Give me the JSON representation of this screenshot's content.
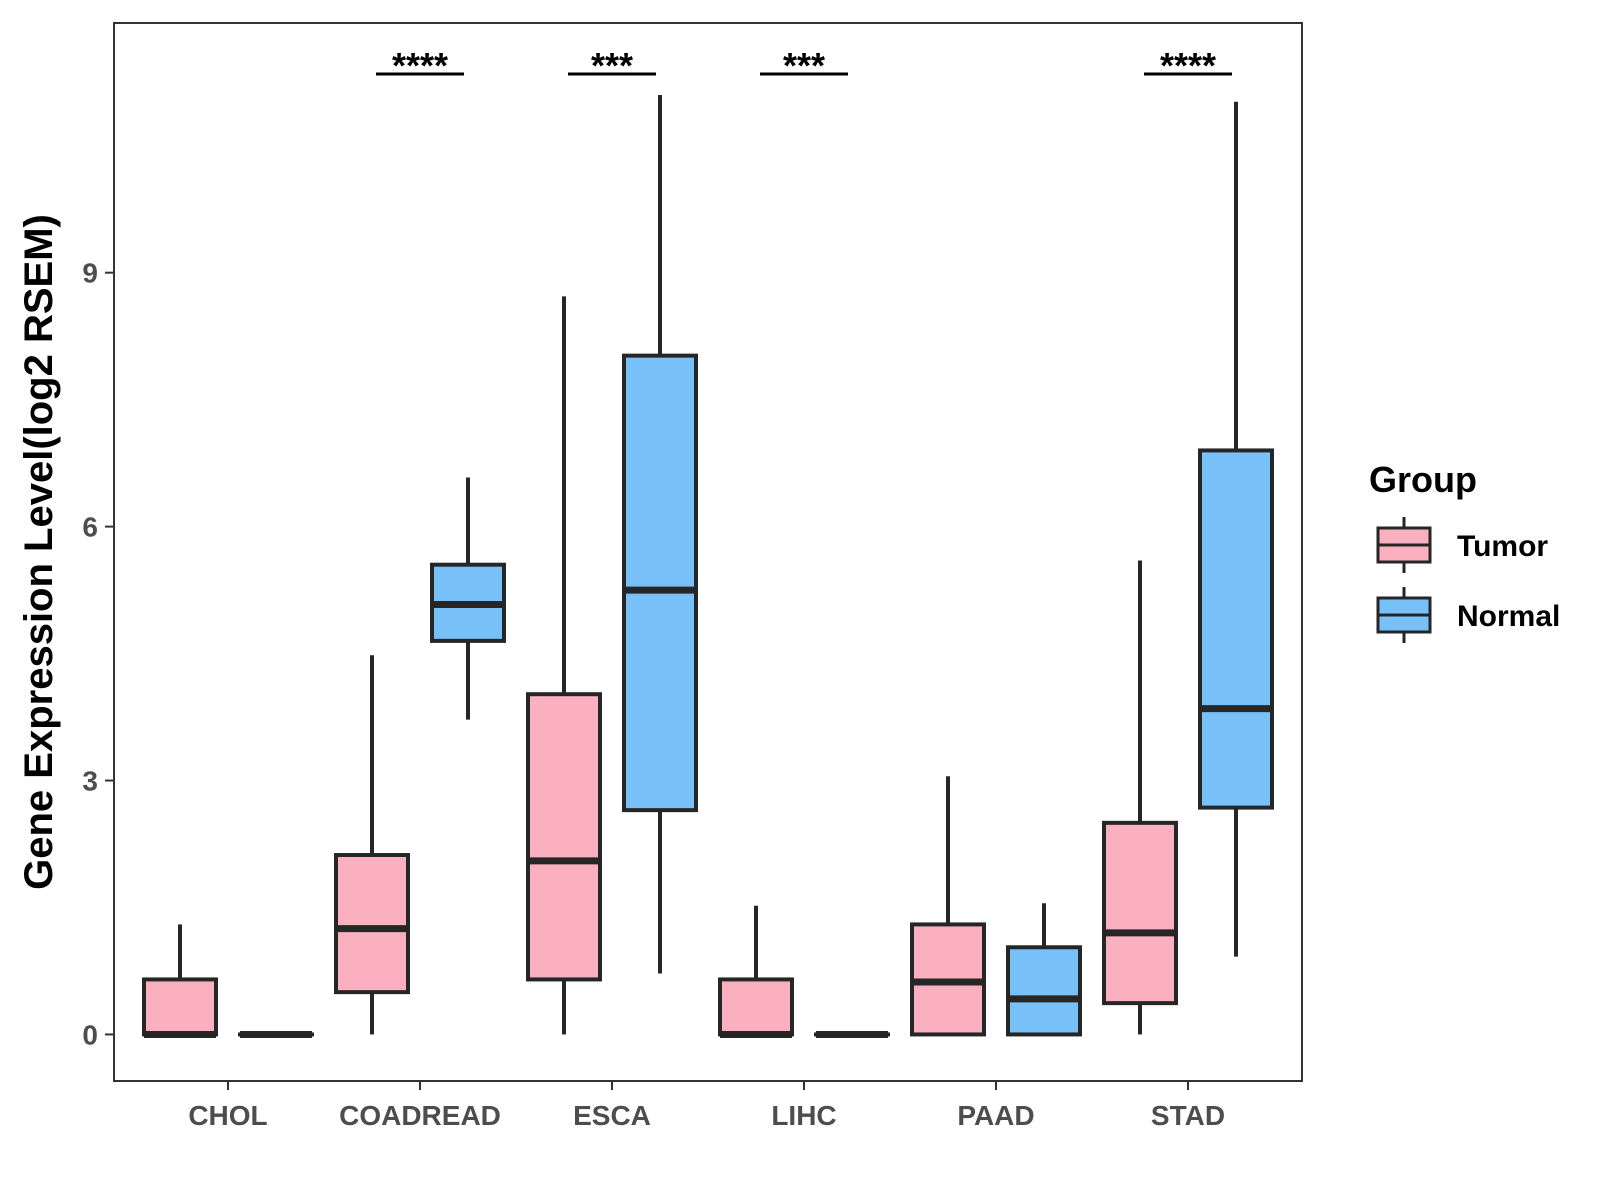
{
  "chart_data": {
    "type": "boxplot",
    "title": "",
    "xlabel": "",
    "ylabel": "Gene Expression Level(log2 RSEM)",
    "ylim": [
      -0.55,
      11.95
    ],
    "yticks": [
      0,
      3,
      6,
      9
    ],
    "ytick_labels": [
      "0",
      "3",
      "6",
      "9"
    ],
    "grid": false,
    "categories": [
      "CHOL",
      "COADREAD",
      "ESCA",
      "LIHC",
      "PAAD",
      "STAD"
    ],
    "significance": [
      "",
      "****",
      "***",
      "***",
      "",
      "****"
    ],
    "legend": {
      "title": "Group",
      "position": "right",
      "items": [
        {
          "name": "Tumor",
          "color": "#FBB0C0"
        },
        {
          "name": "Normal",
          "color": "#78C1F8"
        }
      ]
    },
    "series": [
      {
        "name": "Tumor",
        "color": "#FBB0C0",
        "boxes": [
          {
            "min": 0,
            "q1": 0,
            "median": 0,
            "q3": 0.65,
            "max": 1.3
          },
          {
            "min": 0,
            "q1": 0.5,
            "median": 1.25,
            "q3": 2.12,
            "max": 4.48
          },
          {
            "min": 0,
            "q1": 0.65,
            "median": 2.05,
            "q3": 4.02,
            "max": 8.72
          },
          {
            "min": 0,
            "q1": 0,
            "median": 0,
            "q3": 0.65,
            "max": 1.52
          },
          {
            "min": 0,
            "q1": 0,
            "median": 0.62,
            "q3": 1.3,
            "max": 3.05
          },
          {
            "min": 0,
            "q1": 0.37,
            "median": 1.2,
            "q3": 2.5,
            "max": 5.6
          }
        ]
      },
      {
        "name": "Normal",
        "color": "#78C1F8",
        "boxes": [
          {
            "min": 0,
            "q1": 0,
            "median": 0,
            "q3": 0,
            "max": 0
          },
          {
            "min": 3.72,
            "q1": 4.65,
            "median": 5.08,
            "q3": 5.55,
            "max": 6.58
          },
          {
            "min": 0.72,
            "q1": 2.65,
            "median": 5.25,
            "q3": 8.02,
            "max": 11.1
          },
          {
            "min": 0,
            "q1": 0,
            "median": 0,
            "q3": 0,
            "max": 0
          },
          {
            "min": 0,
            "q1": 0,
            "median": 0.42,
            "q3": 1.03,
            "max": 1.55
          },
          {
            "min": 0.92,
            "q1": 2.68,
            "median": 3.85,
            "q3": 6.9,
            "max": 11.02
          }
        ]
      }
    ]
  }
}
